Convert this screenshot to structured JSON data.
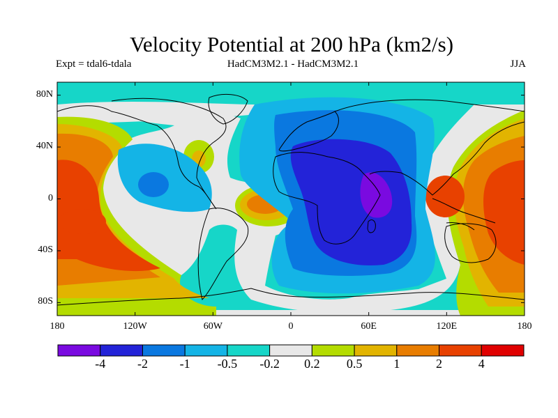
{
  "title": "Velocity Potential at 200 hPa (km2/s)",
  "subtitle_left": "Expt = tdal6-tdala",
  "subtitle_center": "HadCM3M2.1 - HadCM3M2.1",
  "subtitle_right": "JJA",
  "lat_ticks": [
    {
      "value": 80,
      "label": "80N"
    },
    {
      "value": 40,
      "label": "40N"
    },
    {
      "value": 0,
      "label": "0"
    },
    {
      "value": -40,
      "label": "40S"
    },
    {
      "value": -80,
      "label": "80S"
    }
  ],
  "lon_ticks": [
    {
      "value": -180,
      "label": "180"
    },
    {
      "value": -120,
      "label": "120W"
    },
    {
      "value": -60,
      "label": "60W"
    },
    {
      "value": 0,
      "label": "0"
    },
    {
      "value": 60,
      "label": "60E"
    },
    {
      "value": 120,
      "label": "120E"
    },
    {
      "value": 180,
      "label": "180"
    }
  ],
  "map_extent": {
    "lon": [
      -180,
      180
    ],
    "lat": [
      -90,
      90
    ]
  },
  "colorbar": {
    "colors": [
      "#7a0ae0",
      "#2323d8",
      "#0a78e0",
      "#14b4e6",
      "#16d6c8",
      "#e8e8e8",
      "#b4dc00",
      "#e2b400",
      "#e87d00",
      "#e84100",
      "#e00000"
    ],
    "labels": [
      "-4",
      "-2",
      "-1",
      "-0.5",
      "-0.2",
      "0.2",
      "0.5",
      "1",
      "2",
      "4"
    ]
  },
  "field_colors": {
    "background": "#16d6c8",
    "neutral": "#e8e8e8",
    "pos1": "#b4dc00",
    "pos2": "#e2b400",
    "pos3": "#e87d00",
    "pos4": "#e84100",
    "neg1": "#14b4e6",
    "neg2": "#0a78e0",
    "neg3": "#2323d8",
    "neg4": "#7a0ae0",
    "coast": "#000000"
  }
}
